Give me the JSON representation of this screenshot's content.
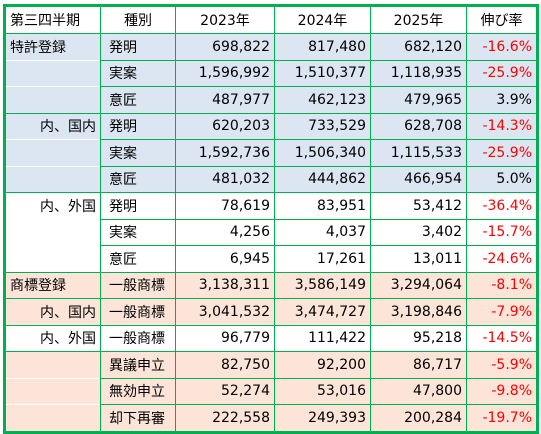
{
  "header": [
    "第三四半期",
    "種別",
    "2023年",
    "2024年",
    "2025年",
    "伸び率"
  ],
  "rows": [
    {
      "group": "特許登録",
      "kind": "発明",
      "y2023": "698,822",
      "y2024": "817,480",
      "y2025": "682,120",
      "rate": "-16.6%",
      "neg": true,
      "bg": "blue",
      "align": "left",
      "gstart": true,
      "gend": false
    },
    {
      "group": "",
      "kind": "実案",
      "y2023": "1,596,992",
      "y2024": "1,510,377",
      "y2025": "1,118,935",
      "rate": "-25.9%",
      "neg": true,
      "bg": "blue",
      "align": "left",
      "gstart": false,
      "gend": false
    },
    {
      "group": "",
      "kind": "意匠",
      "y2023": "487,977",
      "y2024": "462,123",
      "y2025": "479,965",
      "rate": "3.9%",
      "neg": false,
      "bg": "blue",
      "align": "left",
      "gstart": false,
      "gend": true
    },
    {
      "group": "内、国内",
      "kind": "発明",
      "y2023": "620,203",
      "y2024": "733,529",
      "y2025": "628,708",
      "rate": "-14.3%",
      "neg": true,
      "bg": "blue",
      "align": "right",
      "gstart": true,
      "gend": false
    },
    {
      "group": "",
      "kind": "実案",
      "y2023": "1,592,736",
      "y2024": "1,506,340",
      "y2025": "1,115,533",
      "rate": "-25.9%",
      "neg": true,
      "bg": "blue",
      "align": "right",
      "gstart": false,
      "gend": false
    },
    {
      "group": "",
      "kind": "意匠",
      "y2023": "481,032",
      "y2024": "444,862",
      "y2025": "466,954",
      "rate": "5.0%",
      "neg": false,
      "bg": "blue",
      "align": "right",
      "gstart": false,
      "gend": true
    },
    {
      "group": "内、外国",
      "kind": "発明",
      "y2023": "78,619",
      "y2024": "83,951",
      "y2025": "53,412",
      "rate": "-36.4%",
      "neg": true,
      "bg": "white",
      "align": "right",
      "gstart": true,
      "gend": false
    },
    {
      "group": "",
      "kind": "実案",
      "y2023": "4,256",
      "y2024": "4,037",
      "y2025": "3,402",
      "rate": "-15.7%",
      "neg": true,
      "bg": "white",
      "align": "right",
      "gstart": false,
      "gend": false
    },
    {
      "group": "",
      "kind": "意匠",
      "y2023": "6,945",
      "y2024": "17,261",
      "y2025": "13,011",
      "rate": "-24.6%",
      "neg": true,
      "bg": "white",
      "align": "right",
      "gstart": false,
      "gend": true
    },
    {
      "group": "商標登録",
      "kind": "一般商標",
      "y2023": "3,138,311",
      "y2024": "3,586,149",
      "y2025": "3,294,064",
      "rate": "-8.1%",
      "neg": true,
      "bg": "peach",
      "align": "left",
      "gstart": true,
      "gend": true
    },
    {
      "group": "内、国内",
      "kind": "一般商標",
      "y2023": "3,041,532",
      "y2024": "3,474,727",
      "y2025": "3,198,846",
      "rate": "-7.9%",
      "neg": true,
      "bg": "peach",
      "align": "right",
      "gstart": true,
      "gend": true
    },
    {
      "group": "内、外国",
      "kind": "一般商標",
      "y2023": "96,779",
      "y2024": "111,422",
      "y2025": "95,218",
      "rate": "-14.5%",
      "neg": true,
      "bg": "white",
      "align": "right",
      "gstart": true,
      "gend": true
    },
    {
      "group": "",
      "kind": "異議申立",
      "y2023": "82,750",
      "y2024": "92,200",
      "y2025": "86,717",
      "rate": "-5.9%",
      "neg": true,
      "bg": "peach",
      "align": "left",
      "gstart": true,
      "gend": false
    },
    {
      "group": "",
      "kind": "無効申立",
      "y2023": "52,274",
      "y2024": "53,016",
      "y2025": "47,800",
      "rate": "-9.8%",
      "neg": true,
      "bg": "peach",
      "align": "left",
      "gstart": false,
      "gend": false
    },
    {
      "group": "",
      "kind": "却下再審",
      "y2023": "222,558",
      "y2024": "249,393",
      "y2025": "200,284",
      "rate": "-19.7%",
      "neg": true,
      "bg": "peach",
      "align": "left",
      "gstart": false,
      "gend": true
    }
  ],
  "colors": {
    "border": "#00b050",
    "negative": "#ff0000",
    "blue_fill": "#dce6f2",
    "peach_fill": "#fde4d8"
  }
}
